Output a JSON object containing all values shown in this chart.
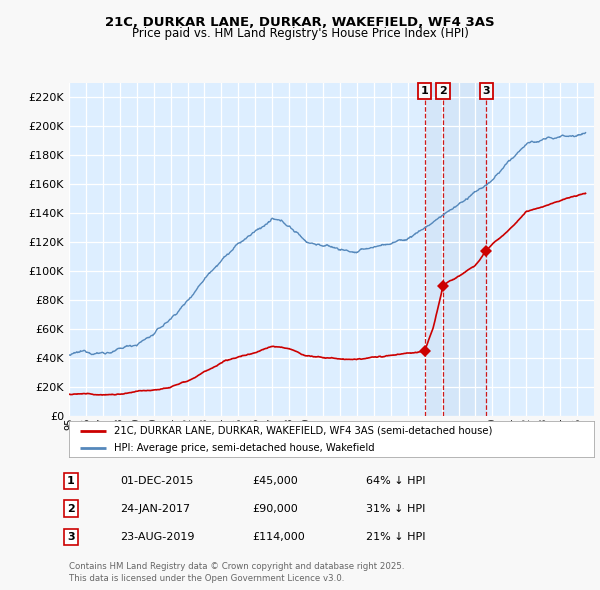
{
  "title1": "21C, DURKAR LANE, DURKAR, WAKEFIELD, WF4 3AS",
  "title2": "Price paid vs. HM Land Registry's House Price Index (HPI)",
  "xlim_start": 1995,
  "xlim_end": 2026,
  "ylim_min": 0,
  "ylim_max": 230000,
  "ytick_step": 20000,
  "sale1_date": 2016.0,
  "sale1_price": 45000,
  "sale1_label": "1",
  "sale2_date": 2017.08,
  "sale2_price": 90000,
  "sale2_label": "2",
  "sale3_date": 2019.65,
  "sale3_price": 114000,
  "sale3_label": "3",
  "legend1": "21C, DURKAR LANE, DURKAR, WAKEFIELD, WF4 3AS (semi-detached house)",
  "legend2": "HPI: Average price, semi-detached house, Wakefield",
  "table_rows": [
    [
      "1",
      "01-DEC-2015",
      "£45,000",
      "64% ↓ HPI"
    ],
    [
      "2",
      "24-JAN-2017",
      "£90,000",
      "31% ↓ HPI"
    ],
    [
      "3",
      "23-AUG-2019",
      "£114,000",
      "21% ↓ HPI"
    ]
  ],
  "footnote": "Contains HM Land Registry data © Crown copyright and database right 2025.\nThis data is licensed under the Open Government Licence v3.0.",
  "red_color": "#cc0000",
  "blue_color": "#5588bb",
  "chart_bg": "#ddeeff",
  "grid_color": "#ffffff",
  "fig_bg": "#f8f8f8"
}
